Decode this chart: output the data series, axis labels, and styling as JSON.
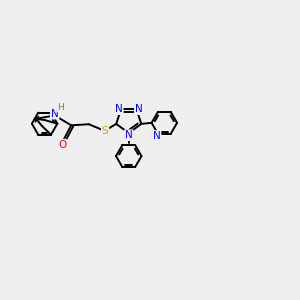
{
  "background_color": "#EFEFEF",
  "bond_color": "#000000",
  "atom_colors": {
    "N": "#0000FF",
    "O": "#FF0000",
    "S": "#CCAA00",
    "H": "#777777",
    "C": "#000000"
  },
  "figsize": [
    3.0,
    3.0
  ],
  "dpi": 100
}
